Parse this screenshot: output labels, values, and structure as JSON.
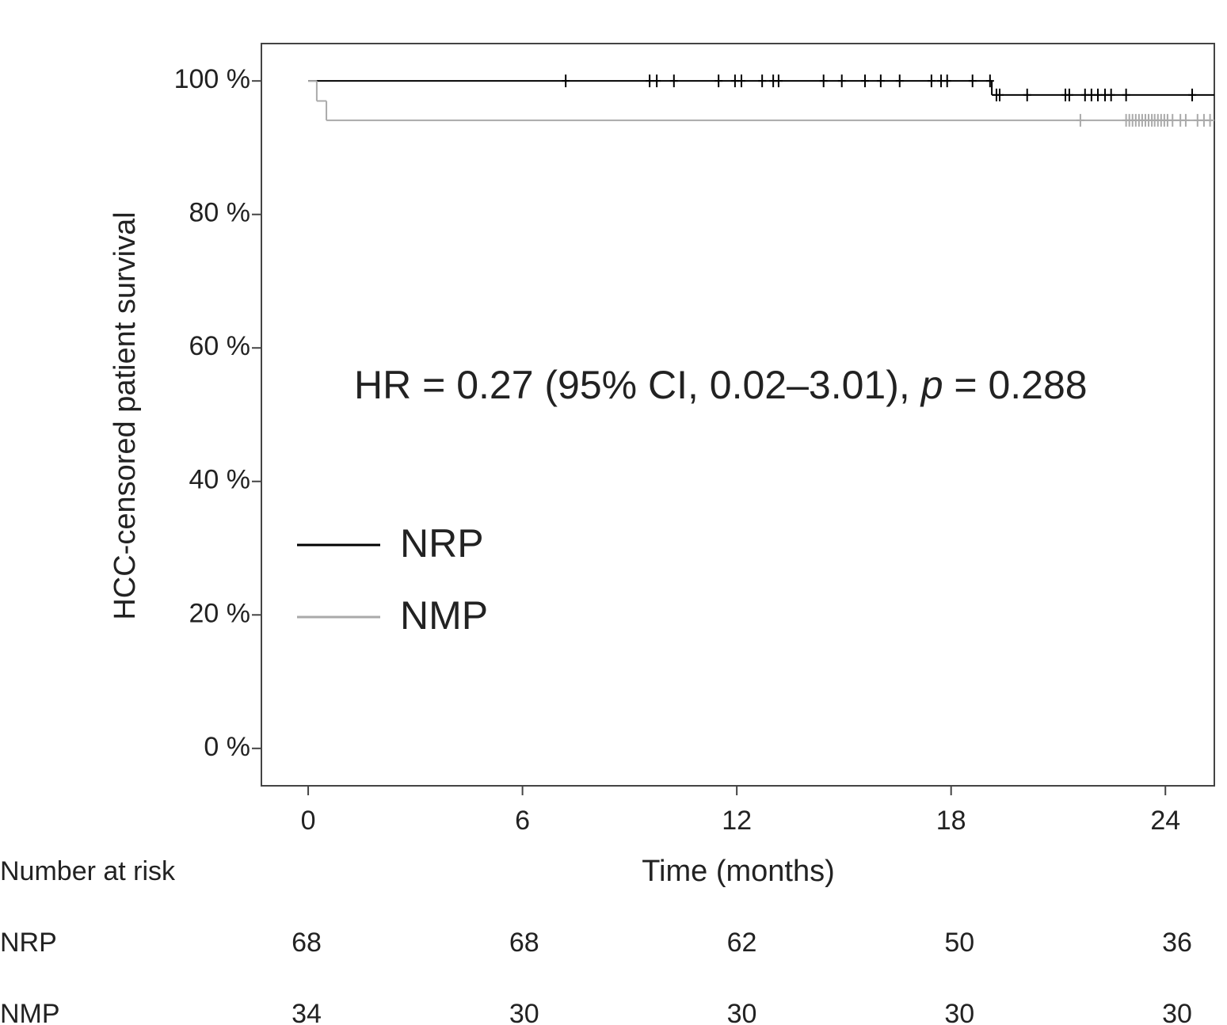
{
  "chart_data": {
    "type": "km",
    "xlabel": "Time (months)",
    "ylabel": "HCC-censored patient survival",
    "annotation": [
      "HR = 0.27 (95% CI, 0.02–3.01), ",
      "p",
      " = 0.288"
    ],
    "xlim": [
      -1.31,
      25.37
    ],
    "xticks": [
      0,
      6,
      12,
      18,
      24
    ],
    "ylim": [
      -5.6,
      105.6
    ],
    "yticks": [
      {
        "value": 0,
        "label": "0 %"
      },
      {
        "value": 20,
        "label": "20 %"
      },
      {
        "value": 40,
        "label": "40 %"
      },
      {
        "value": 60,
        "label": "60 %"
      },
      {
        "value": 80,
        "label": "80 %"
      },
      {
        "value": 100,
        "label": "100 %"
      }
    ],
    "legend": "left",
    "series": [
      {
        "name": "NRP",
        "color": "#000000",
        "x": [
          0,
          19.14,
          25.37
        ],
        "values": [
          100,
          97.9,
          97.9
        ],
        "censor_x": [
          7.21,
          9.56,
          9.76,
          10.24,
          11.49,
          11.95,
          12.13,
          12.71,
          13.02,
          13.17,
          14.43,
          14.94,
          15.59,
          16.03,
          16.56,
          17.45,
          17.72,
          17.89,
          18.6,
          19.09,
          19.27,
          19.36,
          20.13,
          21.2,
          21.31,
          21.75,
          21.93,
          22.11,
          22.31,
          22.48,
          22.9,
          24.75
        ],
        "censor_values": [
          100,
          100,
          100,
          100,
          100,
          100,
          100,
          100,
          100,
          100,
          100,
          100,
          100,
          100,
          100,
          100,
          100,
          100,
          100,
          100,
          97.9,
          97.9,
          97.9,
          97.9,
          97.9,
          97.9,
          97.9,
          97.9,
          97.9,
          97.9,
          97.9,
          97.9
        ]
      },
      {
        "name": "NMP",
        "color": "#aaaaaa",
        "x": [
          0,
          0.24,
          0.51,
          25.37
        ],
        "values": [
          100,
          97.0,
          94.1,
          94.1
        ],
        "censor_x": [
          21.62,
          22.9,
          22.99,
          23.08,
          23.17,
          23.26,
          23.35,
          23.44,
          23.53,
          23.62,
          23.7,
          23.79,
          23.88,
          23.97,
          24.06,
          24.2,
          24.42,
          24.57,
          24.9,
          25.08,
          25.25
        ],
        "censor_values": [
          94.1,
          94.1,
          94.1,
          94.1,
          94.1,
          94.1,
          94.1,
          94.1,
          94.1,
          94.1,
          94.1,
          94.1,
          94.1,
          94.1,
          94.1,
          94.1,
          94.1,
          94.1,
          94.1,
          94.1,
          94.1
        ]
      }
    ],
    "risk_table": {
      "title": "Number at risk",
      "rows": [
        {
          "name": "NRP",
          "values": [
            68,
            68,
            62,
            50,
            36
          ]
        },
        {
          "name": "NMP",
          "values": [
            34,
            30,
            30,
            30,
            30
          ]
        }
      ]
    }
  }
}
